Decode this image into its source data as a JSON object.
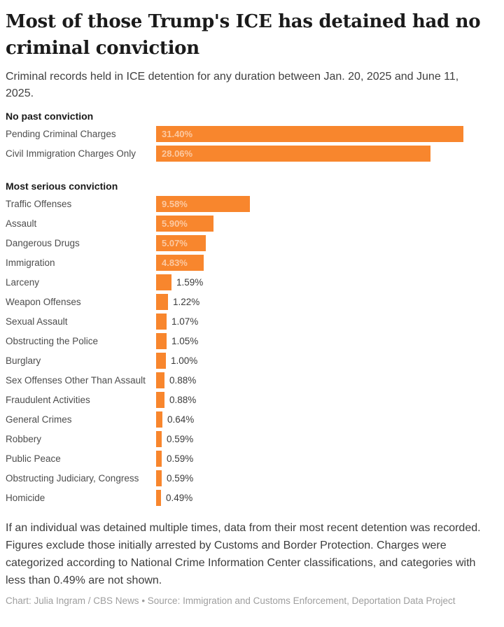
{
  "title": "Most of those Trump's ICE has detained had no criminal conviction",
  "subtitle": "Criminal records held in ICE detention for any duration between Jan. 20, 2025 and June 11, 2025.",
  "notes": "If an individual was detained multiple times, data from their most recent detention was recorded. Figures exclude those initially arrested by Customs and Border Protection. Charges were categorized according to National Crime Information Center classifications, and categories with less than 0.49% are not shown.",
  "credit": "Chart: Julia Ingram / CBS News • Source: Immigration and Customs Enforcement, Deportation Data Project",
  "colors": {
    "bar": "#F8862D",
    "bar_label_inside": "rgba(255,255,255,0.55)",
    "bar_label_outside": "#3a3a3a"
  },
  "chart_data": {
    "type": "bar",
    "orientation": "horizontal",
    "unit": "%",
    "value_axis_max": 31.4,
    "grid": false,
    "legend": false,
    "groups": [
      {
        "header": "No past conviction",
        "rows": [
          {
            "label": "Pending Criminal Charges",
            "value": 31.4,
            "display": "31.40%"
          },
          {
            "label": "Civil Immigration Charges Only",
            "value": 28.06,
            "display": "28.06%"
          }
        ]
      },
      {
        "header": "Most serious conviction",
        "rows": [
          {
            "label": "Traffic Offenses",
            "value": 9.58,
            "display": "9.58%"
          },
          {
            "label": "Assault",
            "value": 5.9,
            "display": "5.90%"
          },
          {
            "label": "Dangerous Drugs",
            "value": 5.07,
            "display": "5.07%"
          },
          {
            "label": "Immigration",
            "value": 4.83,
            "display": "4.83%"
          },
          {
            "label": "Larceny",
            "value": 1.59,
            "display": "1.59%"
          },
          {
            "label": "Weapon Offenses",
            "value": 1.22,
            "display": "1.22%"
          },
          {
            "label": "Sexual Assault",
            "value": 1.07,
            "display": "1.07%"
          },
          {
            "label": "Obstructing the Police",
            "value": 1.05,
            "display": "1.05%"
          },
          {
            "label": "Burglary",
            "value": 1.0,
            "display": "1.00%"
          },
          {
            "label": "Sex Offenses Other Than Assault",
            "value": 0.88,
            "display": "0.88%"
          },
          {
            "label": "Fraudulent Activities",
            "value": 0.88,
            "display": "0.88%"
          },
          {
            "label": "General Crimes",
            "value": 0.64,
            "display": "0.64%"
          },
          {
            "label": "Robbery",
            "value": 0.59,
            "display": "0.59%"
          },
          {
            "label": "Public Peace",
            "value": 0.59,
            "display": "0.59%"
          },
          {
            "label": "Obstructing Judiciary, Congress",
            "value": 0.59,
            "display": "0.59%"
          },
          {
            "label": "Homicide",
            "value": 0.49,
            "display": "0.49%"
          }
        ]
      }
    ]
  }
}
